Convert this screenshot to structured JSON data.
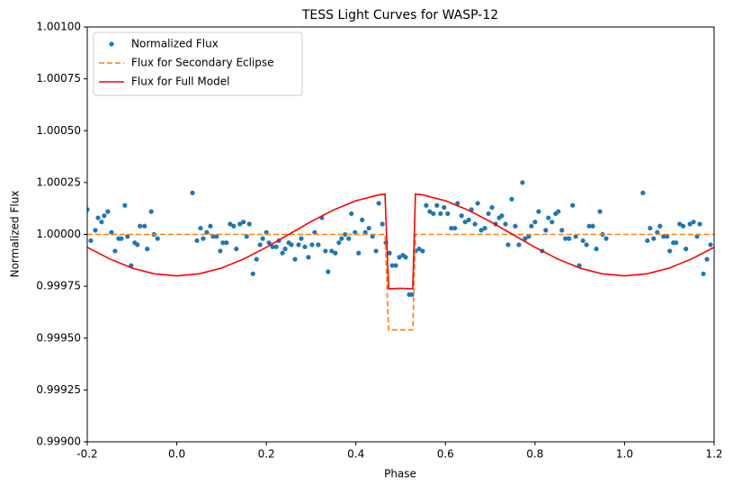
{
  "chart_data": {
    "type": "line",
    "title": "TESS Light Curves for WASP-12",
    "x_label": "Phase",
    "y_label": "Normalized Flux",
    "xlim": [
      -0.2,
      1.2
    ],
    "ylim": [
      0.999,
      1.001
    ],
    "xticks": [
      -0.2,
      {
        "value": 0,
        "label": "0.0"
      },
      0.2,
      0.4,
      0.6,
      0.8,
      {
        "value": 1,
        "label": "1.0"
      },
      1.2
    ],
    "yticks": [
      {
        "value": 0.999,
        "label": "0.99900"
      },
      {
        "value": 0.99925,
        "label": "0.99925"
      },
      {
        "value": 0.9995,
        "label": "0.99950"
      },
      {
        "value": 0.99975,
        "label": "0.99975"
      },
      {
        "value": 1,
        "label": "1.00000"
      },
      {
        "value": 1.00025,
        "label": "1.00025"
      },
      {
        "value": 1.0005,
        "label": "1.00050"
      },
      {
        "value": 1.00075,
        "label": "1.00075"
      },
      {
        "value": 1.001,
        "label": "1.00100"
      }
    ],
    "legend": "upper left",
    "grid": false,
    "series": [
      {
        "name": "Normalized Flux",
        "style": "marker",
        "color": "#1f77b4",
        "x": [
          -0.2,
          -0.192,
          -0.182,
          -0.176,
          -0.168,
          -0.162,
          -0.154,
          -0.146,
          -0.138,
          -0.13,
          -0.124,
          -0.116,
          -0.11,
          -0.102,
          -0.094,
          -0.088,
          -0.082,
          -0.072,
          -0.066,
          -0.057,
          -0.051,
          -0.043,
          0.035,
          0.045,
          0.053,
          0.059,
          0.067,
          0.075,
          0.081,
          0.089,
          0.097,
          0.103,
          0.111,
          0.119,
          0.127,
          0.133,
          0.141,
          0.149,
          0.156,
          0.162,
          0.17,
          0.178,
          0.186,
          0.192,
          0.2,
          0.206,
          0.214,
          0.222,
          0.228,
          0.236,
          0.242,
          0.25,
          0.256,
          0.264,
          0.272,
          0.278,
          0.286,
          0.294,
          0.302,
          0.308,
          0.316,
          0.324,
          0.332,
          0.338,
          0.346,
          0.354,
          0.362,
          0.368,
          0.376,
          0.384,
          0.39,
          0.398,
          0.406,
          0.414,
          0.421,
          0.429,
          0.437,
          0.445,
          0.451,
          0.459,
          0.467,
          0.475,
          0.481,
          0.489,
          0.497,
          0.505,
          0.511,
          0.519,
          0.525,
          0.533,
          0.541,
          0.549,
          0.557,
          0.565,
          0.573,
          0.581,
          0.589,
          0.597,
          0.605,
          0.613,
          0.621,
          0.627,
          0.636,
          0.644,
          0.652,
          0.658,
          0.666,
          0.672,
          0.68,
          0.688,
          0.696,
          0.704,
          0.712,
          0.72,
          0.726,
          0.734,
          0.74,
          0.748,
          0.756,
          0.764,
          0.772,
          0.778,
          0.786,
          0.792,
          0.8,
          0.808,
          0.816,
          0.824,
          0.83,
          0.838,
          0.846,
          0.852,
          0.86,
          0.868,
          0.876,
          0.884,
          0.891,
          0.899,
          0.907,
          0.915,
          0.921,
          0.929,
          0.937,
          0.945,
          0.951,
          0.959,
          1.041,
          1.051,
          1.057,
          1.065,
          1.073,
          1.079,
          1.087,
          1.095,
          1.101,
          1.109,
          1.115,
          1.123,
          1.131,
          1.137,
          1.146,
          1.154,
          1.162,
          1.168,
          1.176,
          1.184,
          1.192
        ],
        "values": [
          1.00012,
          0.99997,
          1.00002,
          1.00008,
          1.00006,
          1.00009,
          1.00011,
          1.00001,
          0.99992,
          0.99998,
          0.99998,
          1.00014,
          0.99999,
          0.99985,
          0.99996,
          0.99995,
          1.00004,
          1.00004,
          0.99993,
          1.00011,
          1.0,
          0.99998,
          1.0002,
          0.99997,
          1.00003,
          0.99998,
          1.00001,
          1.00004,
          0.99999,
          0.99999,
          0.99992,
          0.99996,
          0.99996,
          1.00005,
          1.00004,
          0.99993,
          1.00005,
          1.00006,
          0.99999,
          1.00005,
          0.99981,
          0.99988,
          0.99995,
          0.99998,
          1.00001,
          0.99996,
          0.99994,
          0.99994,
          0.99997,
          0.99991,
          0.99993,
          0.99996,
          0.99995,
          0.99988,
          0.99995,
          0.99998,
          0.99994,
          0.99989,
          0.99995,
          1.00001,
          0.99995,
          1.00008,
          0.99992,
          0.99982,
          0.99992,
          0.99991,
          0.99996,
          0.99998,
          1.0,
          0.99998,
          1.0001,
          1.00001,
          0.99991,
          1.00007,
          1.00001,
          1.00003,
          0.99999,
          0.99992,
          1.00015,
          1.00005,
          0.99996,
          0.99991,
          0.99985,
          0.99985,
          0.99989,
          0.9999,
          0.99989,
          0.99971,
          0.99971,
          0.99992,
          0.99993,
          0.99992,
          1.00014,
          1.00011,
          1.0001,
          1.00014,
          1.0001,
          1.00013,
          1.0001,
          1.00003,
          1.00003,
          1.00015,
          1.00009,
          1.00006,
          1.00007,
          1.00012,
          1.00005,
          1.00015,
          1.00002,
          1.00003,
          1.0001,
          1.00013,
          1.00005,
          1.00008,
          1.00009,
          1.00005,
          0.99995,
          1.00017,
          1.00004,
          0.99995,
          1.00025,
          0.99998,
          0.99999,
          1.00004,
          1.00006,
          1.00011,
          0.99992,
          1.00002,
          1.00008,
          1.00006,
          1.0001,
          1.00011,
          1.00002,
          0.99998,
          0.99998,
          1.00014,
          0.99999,
          0.99985,
          0.99997,
          0.99995,
          1.00004,
          1.00004,
          0.99993,
          1.00011,
          1.0,
          0.99998,
          1.0002,
          0.99997,
          1.00003,
          0.99998,
          1.00001,
          1.00004,
          0.99999,
          0.99999,
          0.99992,
          0.99996,
          0.99996,
          1.00005,
          1.00004,
          0.99993,
          1.00005,
          1.00006,
          0.99999,
          1.00005,
          0.99981,
          0.99988,
          0.99995
        ]
      },
      {
        "name": "Flux for Secondary Eclipse",
        "style": "dashed",
        "color": "#ff7f0e",
        "x": [
          -0.2,
          0.465,
          0.473,
          0.527,
          0.533,
          1.2
        ],
        "values": [
          1.0,
          1.0,
          0.99954,
          0.99954,
          1.0,
          1.0
        ]
      },
      {
        "name": "Flux for Full Model",
        "style": "solid",
        "color": "#ff0000",
        "x": [
          -0.2,
          -0.15,
          -0.1,
          -0.05,
          0,
          0.05,
          0.1,
          0.15,
          0.2,
          0.25,
          0.3,
          0.35,
          0.4,
          0.45,
          0.465,
          0.473,
          0.5,
          0.527,
          0.533,
          0.55,
          0.6,
          0.65,
          0.7,
          0.75,
          0.8,
          0.85,
          0.9,
          0.95,
          1.0,
          1.05,
          1.1,
          1.15,
          1.2
        ],
        "values": [
          0.999938,
          0.999882,
          0.999838,
          0.99981,
          0.9998,
          0.99981,
          0.999838,
          0.999882,
          0.999938,
          1.0,
          1.000062,
          1.000118,
          1.000162,
          1.00019,
          1.000195,
          0.999738,
          0.99974,
          0.999738,
          1.000195,
          1.00019,
          1.000162,
          1.000118,
          1.000062,
          1.0,
          0.999938,
          0.999882,
          0.999838,
          0.99981,
          0.9998,
          0.99981,
          0.999838,
          0.999882,
          0.999938
        ]
      }
    ]
  }
}
